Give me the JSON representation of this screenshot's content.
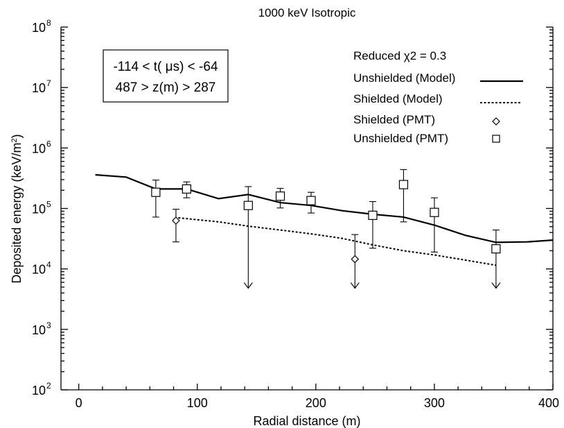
{
  "chart_data": {
    "type": "scatter",
    "title": "1000 keV Isotropic",
    "xlabel": "Radial distance (m)",
    "ylabel": "Deposited energy (keV/m²)",
    "ylabel_main": "Deposited energy (keV/m",
    "ylabel_sup": "2",
    "ylabel_end": ")",
    "xlim": [
      -15,
      400
    ],
    "ylim": [
      100,
      100000000
    ],
    "yscale": "log",
    "xticks": [
      0,
      100,
      200,
      300,
      400
    ],
    "xtick_labels": [
      "0",
      "100",
      "200",
      "300",
      "400"
    ],
    "yticks": [
      100,
      1000,
      10000,
      100000,
      1000000,
      10000000,
      100000000
    ],
    "ytick_base": "10",
    "ytick_exponents": [
      "2",
      "3",
      "4",
      "5",
      "6",
      "7",
      "8"
    ],
    "annotation": {
      "line1": "-114 < t( μs) < -64",
      "line2": "487 > z(m) > 287"
    },
    "stat_text": "Reduced  χ2 = 0.3",
    "legend_position": "top-right",
    "series": [
      {
        "name": "Unshielded (Model)",
        "style": "solid-line",
        "x": [
          14,
          40,
          65,
          91,
          118,
          143,
          170,
          196,
          222,
          248,
          274,
          300,
          326,
          352,
          378,
          400
        ],
        "y": [
          360000,
          330000,
          210000,
          210000,
          145000,
          170000,
          125000,
          112000,
          92000,
          80000,
          72000,
          53000,
          36000,
          27500,
          28000,
          30000
        ]
      },
      {
        "name": "Shielded (Model)",
        "style": "dashed-line",
        "x": [
          84,
          118,
          143,
          170,
          196,
          222,
          248,
          274,
          300,
          326,
          352
        ],
        "y": [
          70000,
          60000,
          51000,
          44000,
          38000,
          32000,
          25000,
          20000,
          17000,
          14000,
          11500
        ]
      },
      {
        "name": "Shielded (PMT)",
        "style": "diamond-marker",
        "points": [
          {
            "x": 82,
            "y": 63000,
            "err_low": 28000,
            "err_high": 97000,
            "upper_limit": false
          },
          {
            "x": 233,
            "y": 14500,
            "err_low": 4800,
            "err_high": 37000,
            "upper_limit": true
          }
        ]
      },
      {
        "name": "Unshielded (PMT)",
        "style": "square-marker",
        "points": [
          {
            "x": 65,
            "y": 185000,
            "err_low": 72000,
            "err_high": 295000,
            "upper_limit": false
          },
          {
            "x": 91,
            "y": 210000,
            "err_low": 150000,
            "err_high": 275000,
            "upper_limit": false
          },
          {
            "x": 143,
            "y": 112000,
            "err_low": 4800,
            "err_high": 230000,
            "upper_limit": true
          },
          {
            "x": 170,
            "y": 160000,
            "err_low": 102000,
            "err_high": 215000,
            "upper_limit": false
          },
          {
            "x": 196,
            "y": 135000,
            "err_low": 84000,
            "err_high": 185000,
            "upper_limit": false
          },
          {
            "x": 248,
            "y": 77000,
            "err_low": 22000,
            "err_high": 130000,
            "upper_limit": false
          },
          {
            "x": 274,
            "y": 248000,
            "err_low": 60000,
            "err_high": 440000,
            "upper_limit": false
          },
          {
            "x": 300,
            "y": 86000,
            "err_low": 19000,
            "err_high": 150000,
            "upper_limit": false
          },
          {
            "x": 352,
            "y": 21500,
            "err_low": 4800,
            "err_high": 44000,
            "upper_limit": true
          }
        ]
      }
    ]
  }
}
